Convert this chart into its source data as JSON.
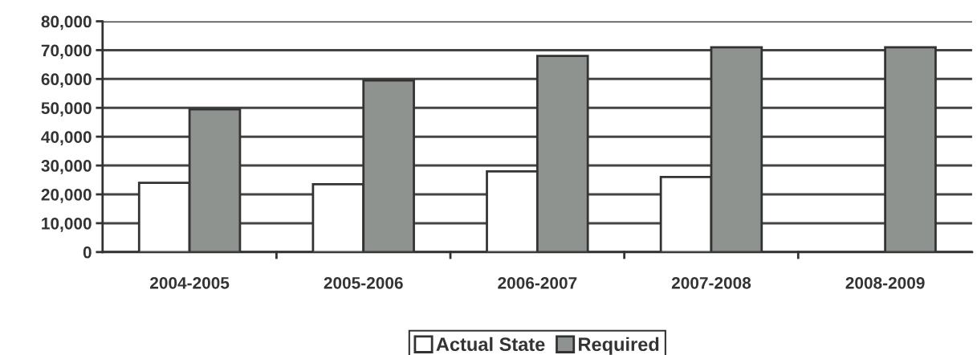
{
  "chart_data": {
    "type": "bar",
    "categories": [
      "2004-2005",
      "2005-2006",
      "2006-2007",
      "2007-2008",
      "2008-2009"
    ],
    "series": [
      {
        "name": "Actual State",
        "color": "#ffffff",
        "values": [
          24000,
          23500,
          28000,
          26000,
          null
        ]
      },
      {
        "name": "Required",
        "color": "#8f938f",
        "values": [
          49500,
          59500,
          68000,
          71000,
          71000
        ]
      }
    ],
    "ylim": [
      0,
      80000
    ],
    "yticks": [
      {
        "value": 0,
        "label": "0"
      },
      {
        "value": 10000,
        "label": "10,000"
      },
      {
        "value": 20000,
        "label": "20,000"
      },
      {
        "value": 30000,
        "label": "30,000"
      },
      {
        "value": 40000,
        "label": "40,000"
      },
      {
        "value": 50000,
        "label": "50,000"
      },
      {
        "value": 60000,
        "label": "60,000"
      },
      {
        "value": 70000,
        "label": "70,000"
      },
      {
        "value": 80000,
        "label": "80,000"
      }
    ],
    "grid": "y",
    "legend": "bottom"
  }
}
